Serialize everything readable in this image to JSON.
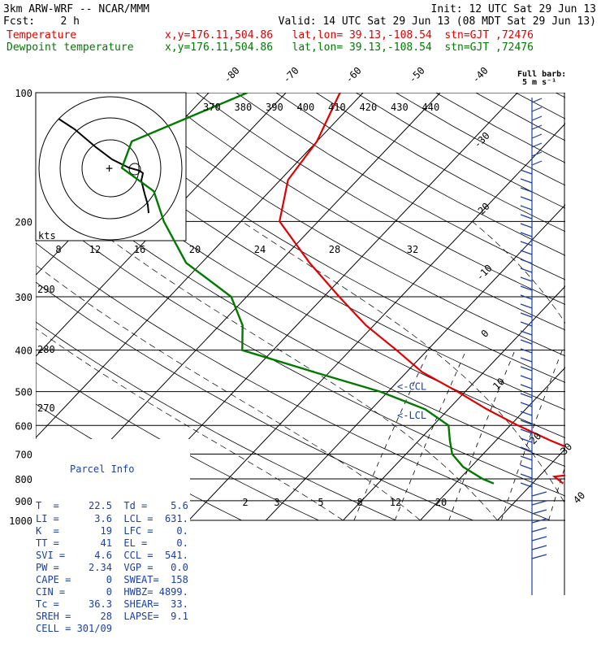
{
  "header": {
    "model": "3km ARW-WRF -- NCAR/MMM",
    "init": "Init: 12 UTC Sat 29 Jun 13",
    "fcst": "Fcst:    2 h",
    "valid": "Valid: 14 UTC Sat 29 Jun 13 (08 MDT Sat 29 Jun 13)",
    "temp_label": "Temperature",
    "temp_loc": "x,y=176.11,504.86   lat,lon= 39.13,-108.54  stn=GJT ,72476",
    "dew_label": "Dewpoint temperature",
    "dew_loc": "x,y=176.11,504.86   lat,lon= 39.13,-108.54  stn=GJT ,72476"
  },
  "colors": {
    "temperature": "#e00000",
    "dewpoint": "#007a00",
    "wind_barbs": "#1a3fa6",
    "panel": "#1a3fa6"
  },
  "chart_data": {
    "type": "skew-t",
    "pressure_ticks": [
      "100",
      "200",
      "300",
      "400",
      "500",
      "600",
      "700",
      "800",
      "900",
      "1000"
    ],
    "isotherm_labels": [
      "-80",
      "-70",
      "-60",
      "-50",
      "-40",
      "-30",
      "-20",
      "-10",
      "0",
      "10",
      "20",
      "30",
      "40"
    ],
    "theta_labels": [
      "370",
      "380",
      "390",
      "400",
      "410",
      "420",
      "430",
      "440"
    ],
    "theta_side_labels": [
      "290",
      "280",
      "270"
    ],
    "mixing_ratio_labels": [
      "2",
      "3",
      "5",
      "8",
      "12",
      "20"
    ],
    "hodograph": {
      "speed_unit": "kts",
      "ring_labels": [
        "8",
        "12",
        "16",
        "20",
        "24",
        "28",
        "32"
      ]
    },
    "temperature": [
      {
        "p": 100,
        "t": -63
      },
      {
        "p": 130,
        "t": -60
      },
      {
        "p": 160,
        "t": -59
      },
      {
        "p": 200,
        "t": -55
      },
      {
        "p": 250,
        "t": -46
      },
      {
        "p": 300,
        "t": -38
      },
      {
        "p": 350,
        "t": -31
      },
      {
        "p": 400,
        "t": -24
      },
      {
        "p": 450,
        "t": -18
      },
      {
        "p": 500,
        "t": -11
      },
      {
        "p": 550,
        "t": -5
      },
      {
        "p": 600,
        "t": 1
      },
      {
        "p": 650,
        "t": 7
      },
      {
        "p": 700,
        "t": 13
      },
      {
        "p": 740,
        "t": 18
      },
      {
        "p": 770,
        "t": 17
      },
      {
        "p": 790,
        "t": 12
      },
      {
        "p": 820,
        "t": 14
      }
    ],
    "dewpoint": [
      {
        "p": 100,
        "t": -75
      },
      {
        "p": 130,
        "t": -84
      },
      {
        "p": 150,
        "t": -82
      },
      {
        "p": 170,
        "t": -75
      },
      {
        "p": 200,
        "t": -70
      },
      {
        "p": 250,
        "t": -62
      },
      {
        "p": 300,
        "t": -52
      },
      {
        "p": 350,
        "t": -47
      },
      {
        "p": 400,
        "t": -44
      },
      {
        "p": 450,
        "t": -32
      },
      {
        "p": 500,
        "t": -21
      },
      {
        "p": 550,
        "t": -13
      },
      {
        "p": 600,
        "t": -8
      },
      {
        "p": 650,
        "t": -6
      },
      {
        "p": 700,
        "t": -4
      },
      {
        "p": 750,
        "t": -1
      },
      {
        "p": 800,
        "t": 3
      },
      {
        "p": 820,
        "t": 5
      }
    ],
    "markers": [
      {
        "label": "<-CCL",
        "p": 541
      },
      {
        "label": "<-LCL",
        "p": 631
      }
    ],
    "full_barb": "Full barb:",
    "full_barb_unit": "5 m s⁻¹",
    "barb_count": 52
  },
  "parcel_info": {
    "title": "Parcel Info",
    "rows": [
      [
        "T  =",
        "22.5",
        "Td =",
        "5.6"
      ],
      [
        "LI =",
        "3.6",
        "LCL =",
        "631."
      ],
      [
        "K  =",
        "19",
        "LFC =",
        "0."
      ],
      [
        "TT =",
        "41",
        "EL =",
        "0."
      ],
      [
        "SVI =",
        "4.6",
        "CCL =",
        "541."
      ],
      [
        "PW =",
        "2.34",
        "VGP =",
        "0.0"
      ],
      [
        "CAPE =",
        "0",
        "SWEAT=",
        "158"
      ],
      [
        "CIN =",
        "0",
        "HWBZ=",
        "4899."
      ],
      [
        "Tc =",
        "36.3",
        "SHEAR=",
        "33."
      ],
      [
        "SREH =",
        "28",
        "LAPSE=",
        "9.1"
      ],
      [
        "CELL =",
        "301/09",
        "",
        ""
      ]
    ]
  }
}
